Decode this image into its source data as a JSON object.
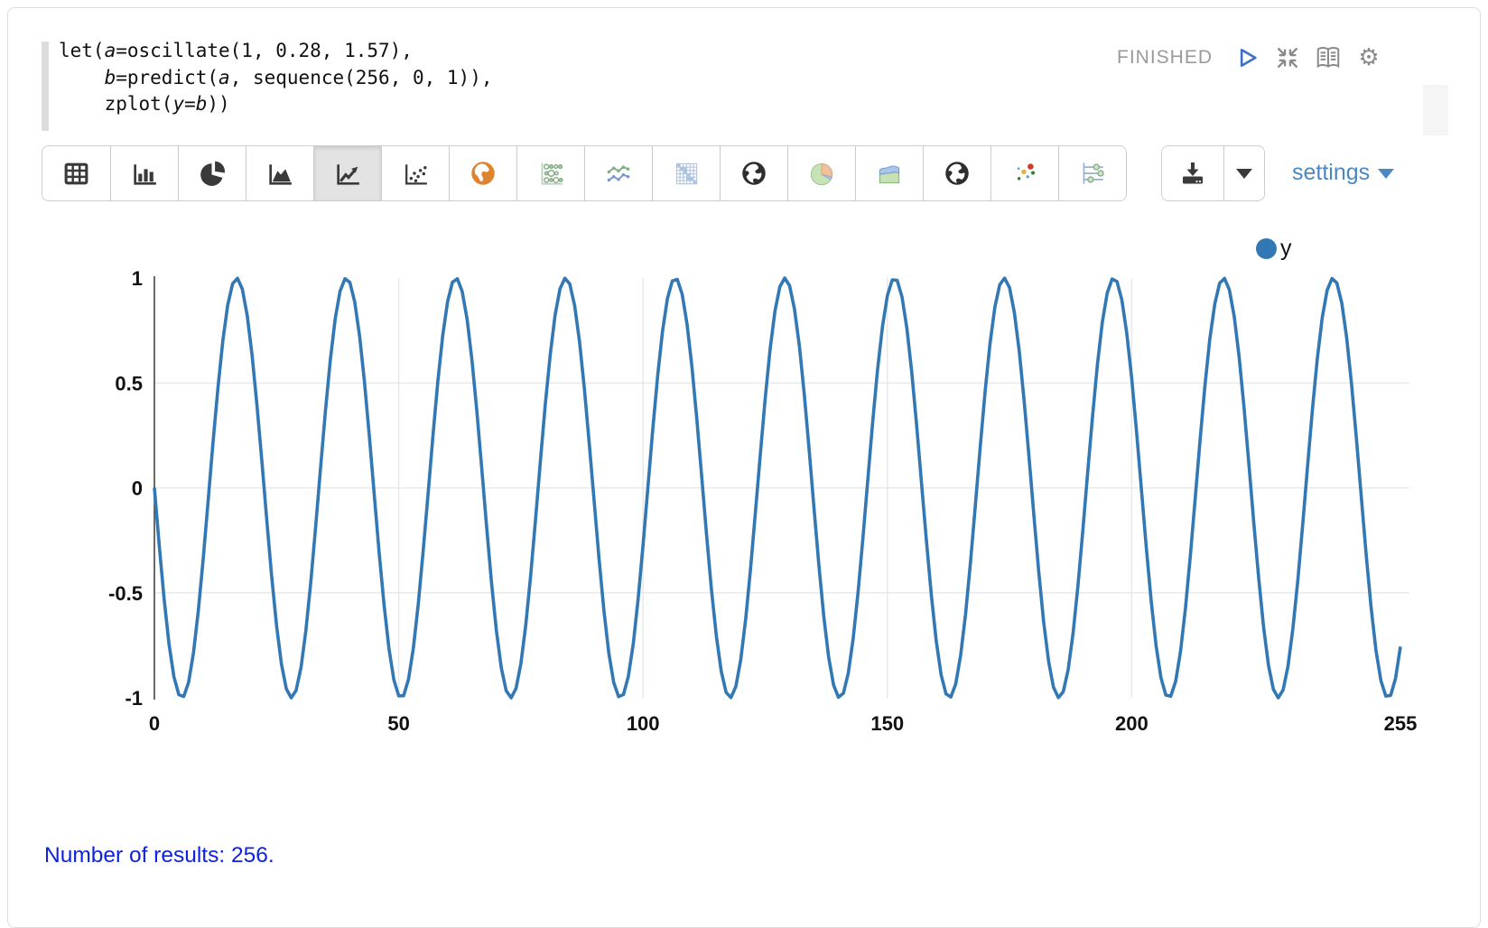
{
  "editor": {
    "code": "let(a=oscillate(1, 0.28, 1.57),\n    b=predict(a, sequence(256, 0, 1)),\n    zplot(y=b))",
    "status": "FINISHED",
    "control_icons": [
      "play-icon",
      "collapse-icon",
      "book-icon",
      "gear-icon"
    ]
  },
  "toolbar": {
    "chart_buttons": [
      {
        "id": "table",
        "selected": false
      },
      {
        "id": "bar-chart",
        "selected": false
      },
      {
        "id": "pie-chart",
        "selected": false
      },
      {
        "id": "area-chart",
        "selected": false
      },
      {
        "id": "line-chart",
        "selected": true
      },
      {
        "id": "scatter-chart",
        "selected": false
      },
      {
        "id": "globe-orange",
        "selected": false
      },
      {
        "id": "bubble-matrix",
        "selected": false
      },
      {
        "id": "multi-line",
        "selected": false
      },
      {
        "id": "heatmap",
        "selected": false
      },
      {
        "id": "globe-dark-1",
        "selected": false
      },
      {
        "id": "pie-pastel",
        "selected": false
      },
      {
        "id": "area-pastel",
        "selected": false
      },
      {
        "id": "globe-dark-2",
        "selected": false
      },
      {
        "id": "scatter-colored",
        "selected": false
      },
      {
        "id": "sliders",
        "selected": false
      }
    ],
    "download_icon": "download-icon",
    "settings_label": "settings"
  },
  "chart_data": {
    "type": "line",
    "title": "",
    "xlabel": "",
    "ylabel": "",
    "xlim": [
      0,
      255
    ],
    "ylim": [
      -1,
      1
    ],
    "x_tick_values": [
      0,
      50,
      100,
      150,
      200,
      255
    ],
    "x_tick_labels": [
      "0",
      "50",
      "100",
      "150",
      "200",
      "255"
    ],
    "y_tick_values": [
      1,
      0.5,
      0,
      -0.5,
      -1
    ],
    "y_tick_labels": [
      "1",
      "0.5",
      "0",
      "-0.5",
      "-1"
    ],
    "x_gridlines": [
      50,
      100,
      150,
      200
    ],
    "y_gridlines": [
      0.5,
      0,
      -0.5
    ],
    "grid": true,
    "series": [
      {
        "name": "y",
        "color": "#3278b4",
        "n_points": 256,
        "x_start": 0,
        "x_end": 255,
        "generator": {
          "function": "cos",
          "amplitude": 1,
          "angular_frequency": 0.28,
          "phase": 1.57
        },
        "description": "y[i] = 1*cos(0.28*i + 1.57), i = 0..255; output of predict(oscillate(1, 0.28, 1.57), sequence(256, 0, 1))"
      }
    ],
    "legend": {
      "position": "top-right",
      "entries": [
        {
          "label": "y",
          "color": "#3278b4"
        }
      ]
    }
  },
  "footer": {
    "results_text": "Number of results: 256."
  }
}
